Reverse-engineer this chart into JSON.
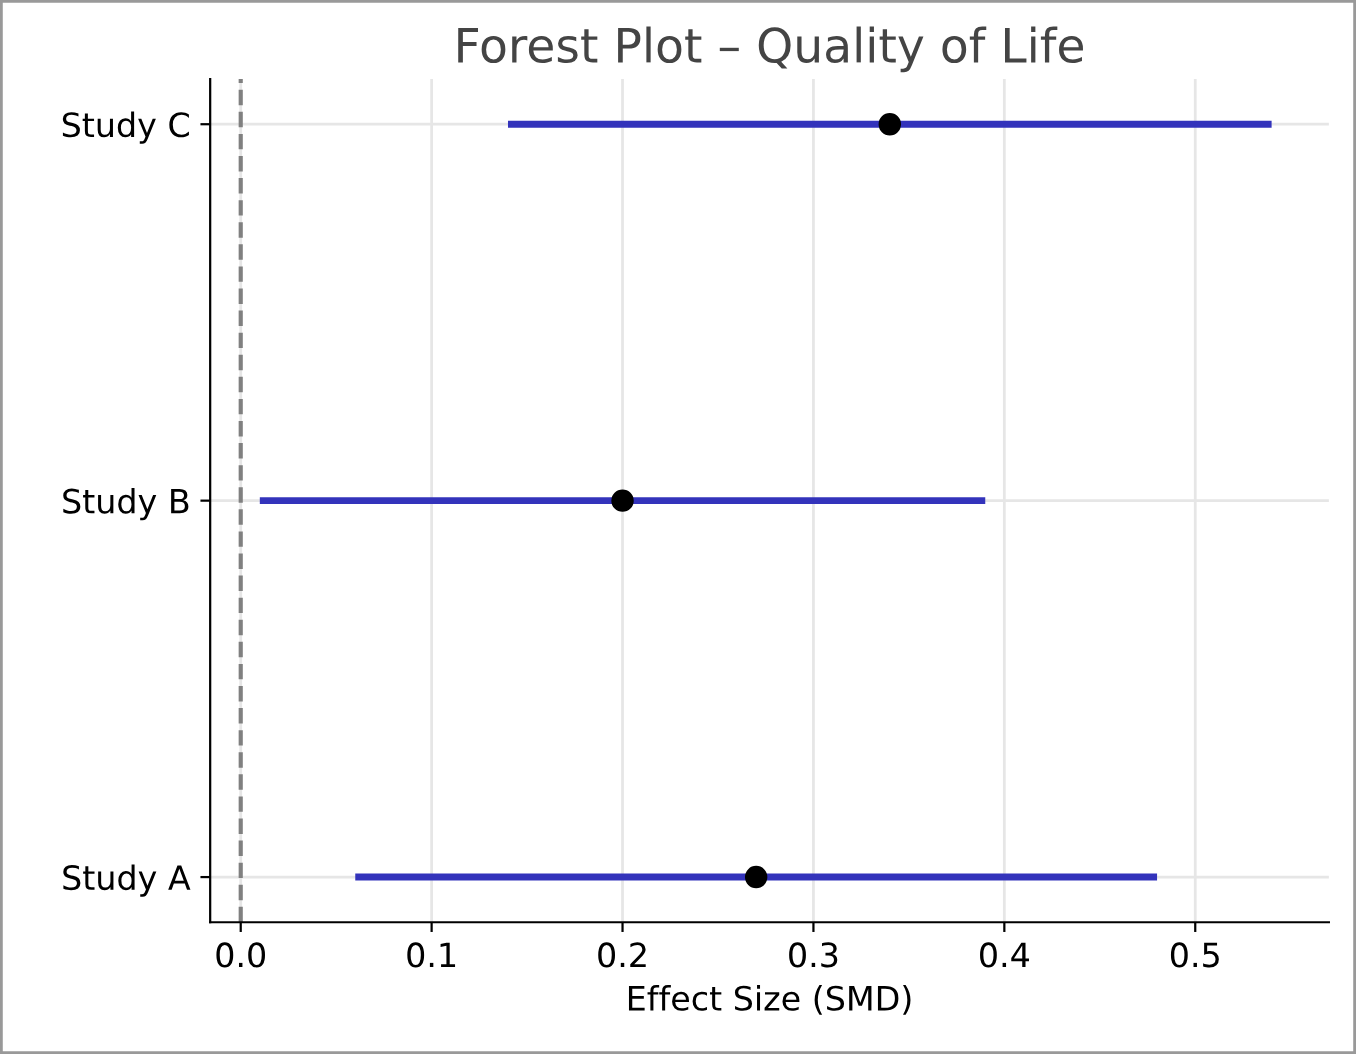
{
  "chart_data": {
    "type": "scatter",
    "orientation": "horizontal",
    "title": "Forest Plot – Quality of Life",
    "xlabel": "Effect Size (SMD)",
    "categories": [
      "Study C",
      "Study B",
      "Study A"
    ],
    "series": [
      {
        "color": "#3333bb",
        "colors": [
          "#000000",
          "#000000",
          "#000000"
        ],
        "values": [
          0.34,
          0.2,
          0.27
        ],
        "errors": [
          [
            0.14,
            0.54
          ],
          [
            0.01,
            0.39
          ],
          [
            0.06,
            0.48
          ]
        ]
      }
    ],
    "xlim": [
      -0.016,
      0.57
    ],
    "xticks": [
      {
        "value": 0,
        "label": "0.0"
      },
      0.1,
      0.2,
      0.3,
      0.4,
      0.5
    ],
    "ref_lines": [
      {
        "axis": "x",
        "value": 0,
        "color": "#808080",
        "line_style": "dashed"
      }
    ],
    "grid": true,
    "marker": "circle"
  }
}
